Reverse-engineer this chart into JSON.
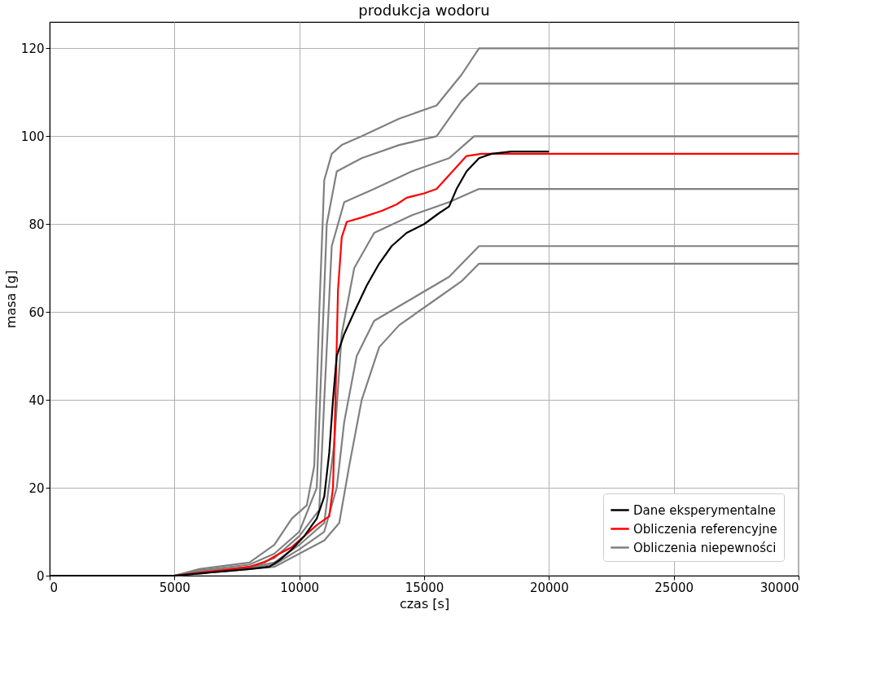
{
  "chart_data": {
    "type": "line",
    "title": "produkcja wodoru",
    "xlabel": "czas [s]",
    "ylabel": "masa [g]",
    "xlim": [
      0,
      30000
    ],
    "xticks": [
      0,
      5000,
      10000,
      15000,
      20000,
      25000,
      30000
    ],
    "ylim": [
      0,
      126
    ],
    "yticks": [
      0,
      20,
      40,
      60,
      80,
      100,
      120
    ],
    "grid": true,
    "legend": "bottom right",
    "marker": "none",
    "line_style": "solid",
    "series": [
      {
        "name": "Dane eksperymentalne",
        "color": "#000000",
        "x": [
          0,
          5000,
          6000,
          7000,
          8000,
          8800,
          9200,
          9700,
          10200,
          10700,
          11000,
          11200,
          11350,
          11500,
          11800,
          12200,
          12700,
          13200,
          13700,
          14300,
          15000,
          15600,
          16000,
          16300,
          16700,
          17200,
          17700,
          18500,
          20000
        ],
        "values": [
          0,
          0,
          0.5,
          1,
          1.5,
          2,
          3.5,
          6,
          9,
          13,
          18,
          28,
          40,
          50,
          55,
          60,
          66,
          71,
          75,
          78,
          80,
          82.5,
          84,
          88,
          92,
          95,
          96,
          96.5,
          96.5
        ]
      },
      {
        "name": "Obliczenia referencyjne",
        "color": "#ff0000",
        "x": [
          0,
          5000,
          6000,
          7000,
          8000,
          8600,
          9200,
          9700,
          10200,
          10700,
          11200,
          11350,
          11450,
          11550,
          11700,
          11900,
          12500,
          13300,
          13900,
          14300,
          15000,
          15500,
          15900,
          16300,
          16700,
          17300,
          30000
        ],
        "values": [
          0,
          0,
          0.7,
          1.3,
          2,
          3,
          5,
          6.5,
          9,
          11.5,
          13.5,
          20,
          40,
          65,
          77,
          80.5,
          81.5,
          83,
          84.5,
          86,
          87,
          88,
          90.5,
          93,
          95.5,
          96,
          96
        ]
      },
      {
        "name": "Obliczenia niepewności",
        "color": "#808080",
        "x": [
          0,
          5000,
          6000,
          8000,
          9000,
          9700,
          10300,
          10600,
          10800,
          11000,
          11300,
          11700,
          12500,
          14000,
          15500,
          16500,
          17200,
          30000
        ],
        "values": [
          0,
          0,
          1.5,
          3,
          7,
          13,
          16,
          25,
          60,
          90,
          96,
          98,
          100,
          104,
          107,
          114,
          120,
          120
        ]
      },
      {
        "color": "#808080",
        "x": [
          0,
          5000,
          6000,
          8000,
          9000,
          10000,
          10700,
          10900,
          11100,
          11500,
          12500,
          14000,
          15500,
          16500,
          17200,
          30000
        ],
        "values": [
          0,
          0,
          1.2,
          2.5,
          5,
          10,
          20,
          50,
          80,
          92,
          95,
          98,
          100,
          108,
          112,
          112
        ]
      },
      {
        "color": "#808080",
        "x": [
          0,
          5000,
          6000,
          8000,
          9000,
          10000,
          10800,
          11000,
          11300,
          11800,
          13000,
          14500,
          16000,
          17000,
          30000
        ],
        "values": [
          0,
          0,
          1,
          2,
          4,
          9,
          15,
          40,
          75,
          85,
          88,
          92,
          95,
          100,
          100
        ]
      },
      {
        "color": "#808080",
        "x": [
          0,
          5000,
          6000,
          8000,
          9000,
          10000,
          11000,
          11400,
          11700,
          12200,
          13000,
          14500,
          16000,
          17200,
          30000
        ],
        "values": [
          0,
          0,
          0.8,
          1.8,
          3,
          7,
          12,
          30,
          55,
          70,
          78,
          82,
          85,
          88,
          88
        ]
      },
      {
        "color": "#808080",
        "x": [
          0,
          5000,
          6000,
          8000,
          9000,
          10000,
          11000,
          11500,
          11800,
          12300,
          13000,
          14500,
          16000,
          17200,
          30000
        ],
        "values": [
          0,
          0,
          0.6,
          1.6,
          2.5,
          6,
          10,
          20,
          35,
          50,
          58,
          63,
          68,
          75,
          75
        ]
      },
      {
        "color": "#808080",
        "x": [
          0,
          5000,
          6000,
          8000,
          9000,
          10000,
          11000,
          11600,
          12000,
          12500,
          13200,
          14000,
          15500,
          16500,
          17200,
          30000
        ],
        "values": [
          0,
          0,
          0.5,
          1.5,
          2,
          5,
          8,
          12,
          25,
          40,
          52,
          57,
          63,
          67,
          71,
          71
        ]
      }
    ]
  }
}
